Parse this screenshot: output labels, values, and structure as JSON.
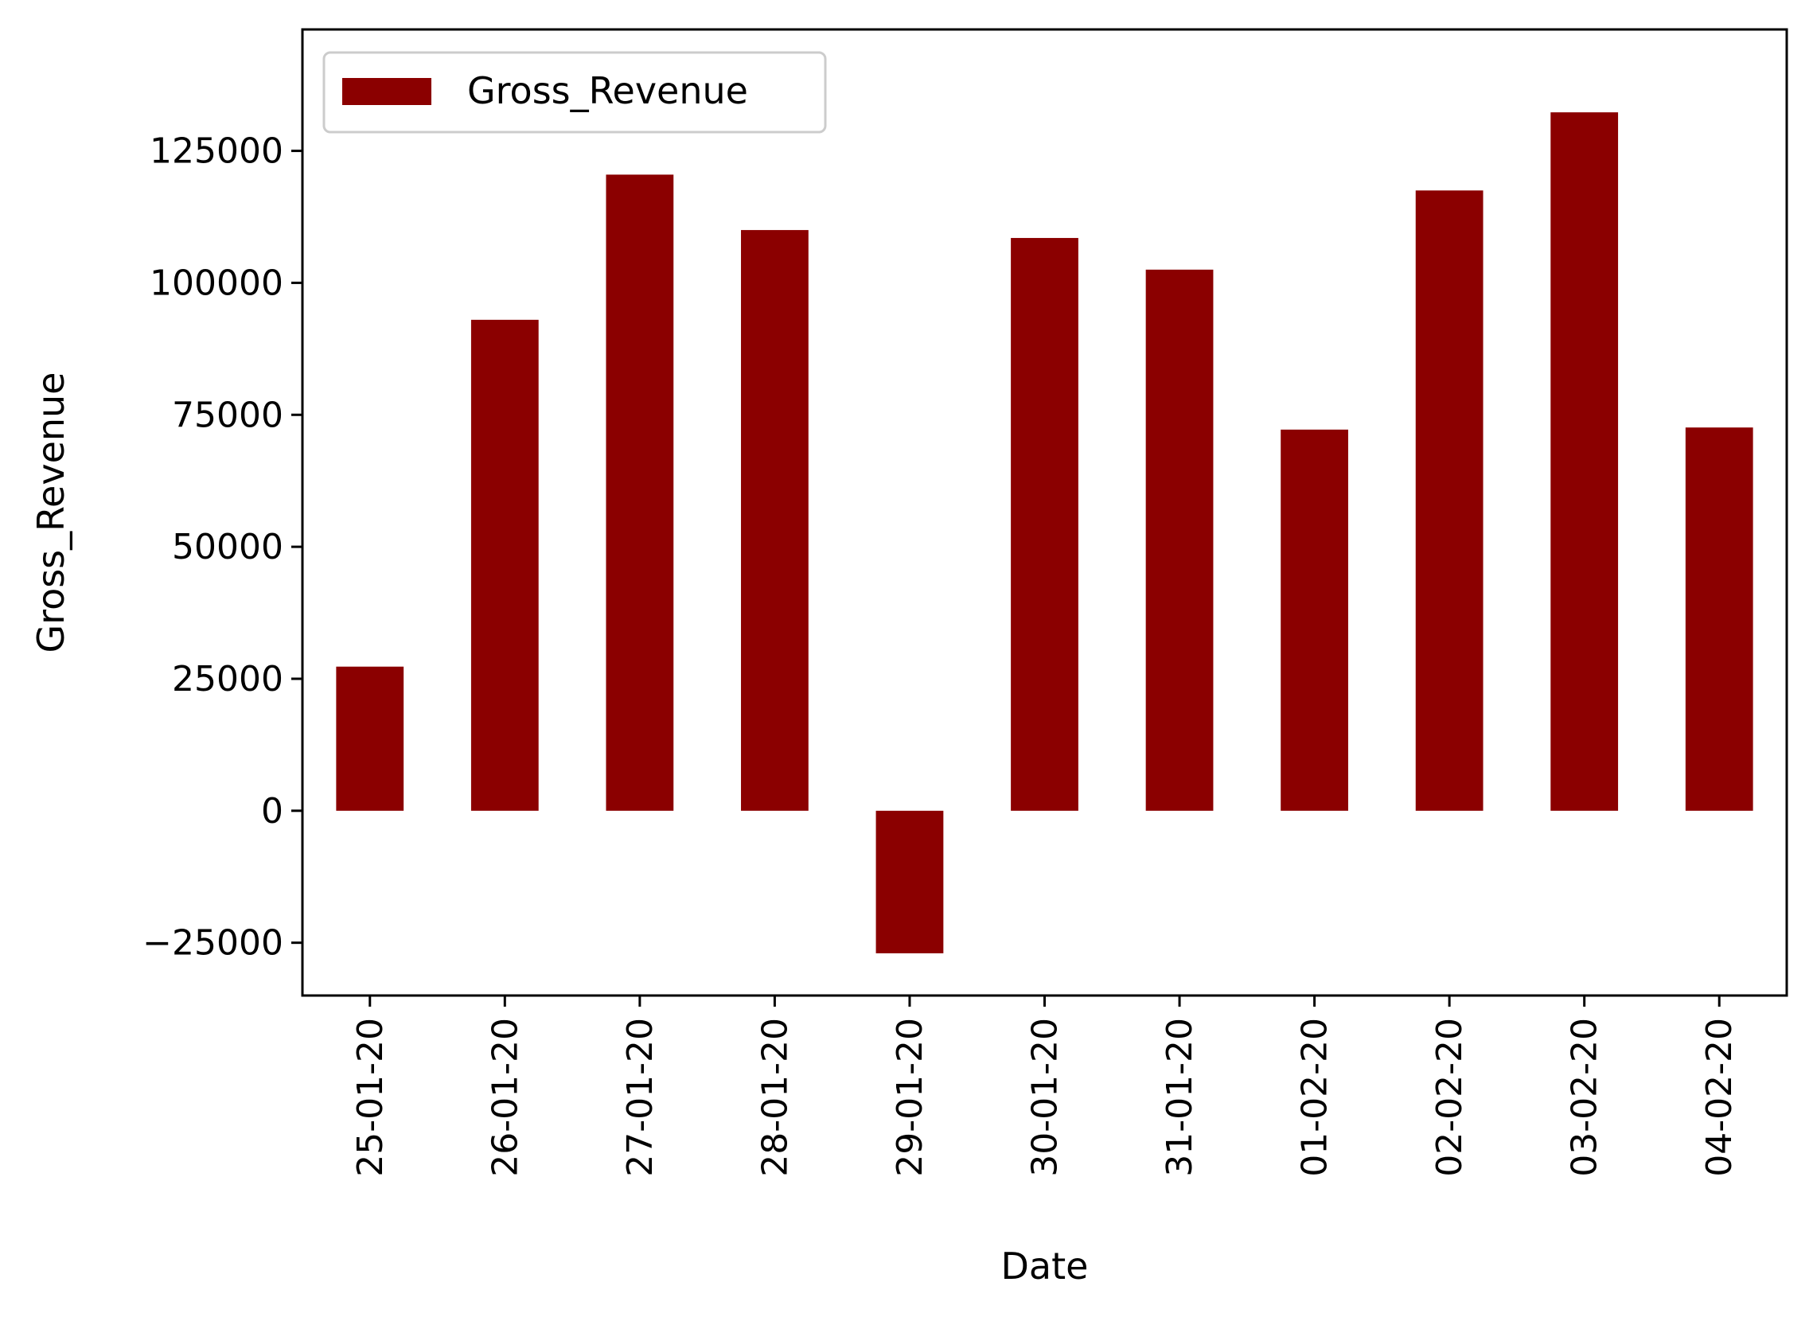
{
  "chart_data": {
    "type": "bar",
    "categories": [
      "25-01-20",
      "26-01-20",
      "27-01-20",
      "28-01-20",
      "29-01-20",
      "30-01-20",
      "31-01-20",
      "01-02-20",
      "02-02-20",
      "03-02-20",
      "04-02-20"
    ],
    "series": [
      {
        "name": "Gross_Revenue",
        "values": [
          27300,
          93000,
          120500,
          110000,
          -27000,
          108500,
          102500,
          72200,
          117500,
          132300,
          72600
        ],
        "color": "#8b0000"
      }
    ],
    "xlabel": "Date",
    "ylabel": "Gross_Revenue",
    "ylim": [
      -35000,
      148000
    ],
    "yticks": [
      -25000,
      0,
      25000,
      50000,
      75000,
      100000,
      125000
    ],
    "ytick_labels": [
      "−25000",
      "0",
      "25000",
      "50000",
      "75000",
      "100000",
      "125000"
    ],
    "grid": false,
    "legend_position": "top-left"
  }
}
